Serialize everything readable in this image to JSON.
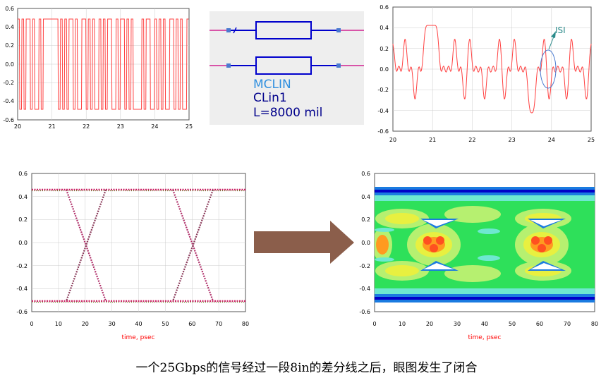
{
  "tx_waveform": {
    "x_ticks": [
      "20",
      "21",
      "22",
      "23",
      "24",
      "25"
    ],
    "y_ticks": [
      "0.6",
      "0.4",
      "0.2",
      "0.0",
      "-0.2",
      "-0.4",
      "-0.6"
    ]
  },
  "schematic": {
    "component": "MCLIN",
    "instance": "CLin1",
    "length": "L=8000 mil"
  },
  "rx_waveform": {
    "x_ticks": [
      "20",
      "21",
      "22",
      "23",
      "24",
      "25"
    ],
    "y_ticks": [
      "0.6",
      "0.4",
      "0.2",
      "0.0",
      "-0.2",
      "-0.4",
      "-0.6"
    ],
    "annotation": "ISI"
  },
  "eye_open": {
    "x_ticks": [
      "0",
      "10",
      "20",
      "30",
      "40",
      "50",
      "60",
      "70",
      "80"
    ],
    "y_ticks": [
      "0.6",
      "0.4",
      "0.2",
      "0.0",
      "-0.2",
      "-0.4",
      "-0.6"
    ],
    "xlabel": "time, psec"
  },
  "eye_closed": {
    "x_ticks": [
      "0",
      "10",
      "20",
      "30",
      "40",
      "50",
      "60",
      "70",
      "80"
    ],
    "y_ticks": [
      "0.6",
      "0.4",
      "0.2",
      "0.0",
      "-0.2",
      "-0.4",
      "-0.6"
    ],
    "xlabel": "time, psec"
  },
  "arrow": {
    "color": "#8b5e4b"
  },
  "caption": "一个25Gbps的信号经过一段8in的差分线之后，眼图发生了闭合"
}
